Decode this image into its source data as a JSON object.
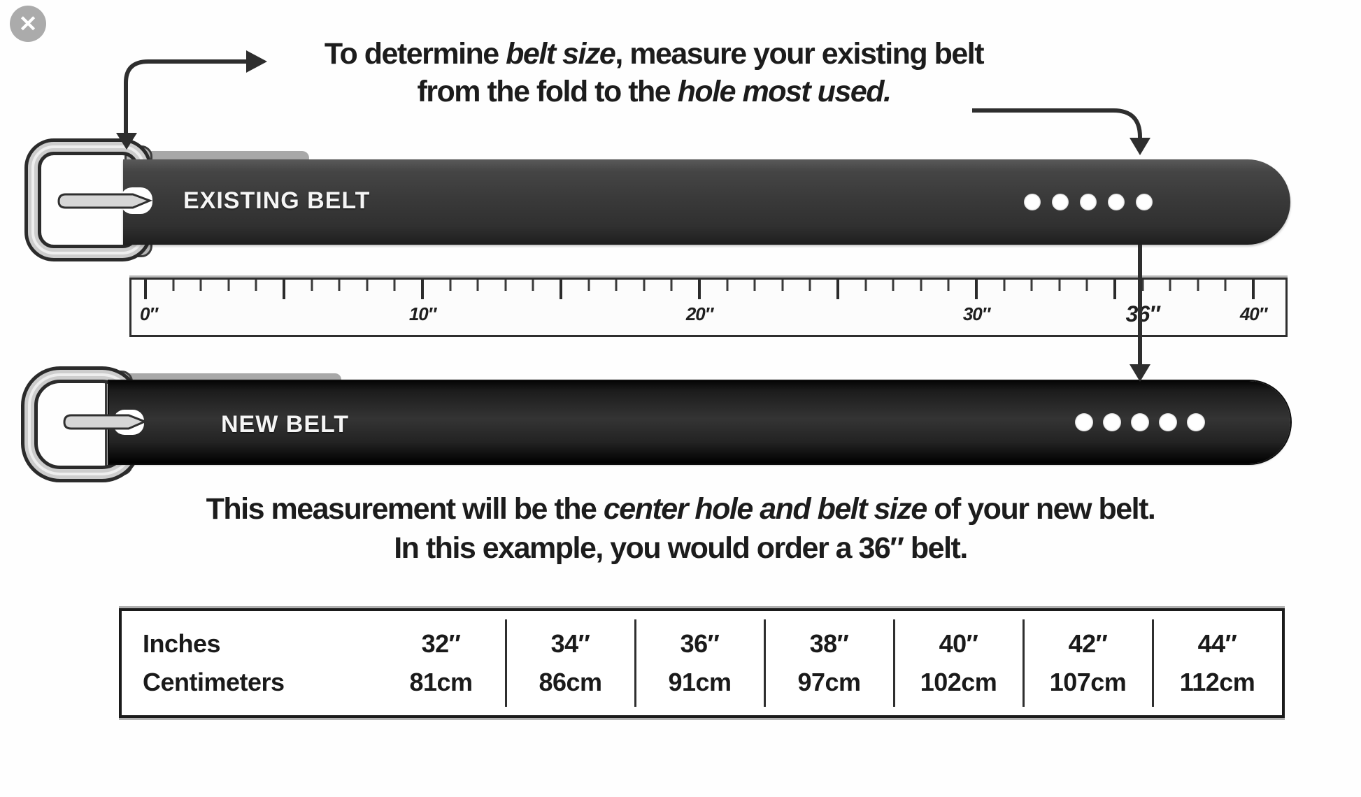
{
  "viewer": {
    "close_label": "✕"
  },
  "instructions_top": {
    "line1_pre": "To determine ",
    "line1_emphasis": "belt size",
    "line1_post": ", measure your existing belt",
    "line2_pre": "from the fold to the ",
    "line2_emphasis": "hole most used."
  },
  "existing_belt": {
    "label": "EXISTING BELT",
    "hole_count": 5
  },
  "new_belt": {
    "label": "NEW BELT",
    "hole_count": 5
  },
  "ruler": {
    "min_inches": 0,
    "max_inches": 40,
    "major_every_inches": 5,
    "highlight_value": 36,
    "labels": [
      {
        "value": 0,
        "text": "0″",
        "emphasis": false
      },
      {
        "value": 10,
        "text": "10″",
        "emphasis": false
      },
      {
        "value": 20,
        "text": "20″",
        "emphasis": false
      },
      {
        "value": 30,
        "text": "30″",
        "emphasis": false
      },
      {
        "value": 36,
        "text": "36″",
        "emphasis": true
      },
      {
        "value": 40,
        "text": "40″",
        "emphasis": false
      }
    ]
  },
  "instructions_bottom": {
    "line1_pre": "This measurement will be the ",
    "line1_emphasis": "center hole and belt size",
    "line1_post": " of your new belt.",
    "line2": "In this example, you would order a 36″ belt."
  },
  "size_table": {
    "row_labels": [
      "Inches",
      "Centimeters"
    ],
    "columns": [
      {
        "inches": "32″",
        "cm": "81cm"
      },
      {
        "inches": "34″",
        "cm": "86cm"
      },
      {
        "inches": "36″",
        "cm": "91cm"
      },
      {
        "inches": "38″",
        "cm": "97cm"
      },
      {
        "inches": "40″",
        "cm": "102cm"
      },
      {
        "inches": "42″",
        "cm": "107cm"
      },
      {
        "inches": "44″",
        "cm": "112cm"
      }
    ]
  },
  "colors": {
    "existing_belt": "#3a3a3a",
    "new_belt": "#1d1d1d",
    "buckle_metal": "#cdcdcd",
    "arrow": "#2e2e2e",
    "close_button": "#ababab"
  }
}
